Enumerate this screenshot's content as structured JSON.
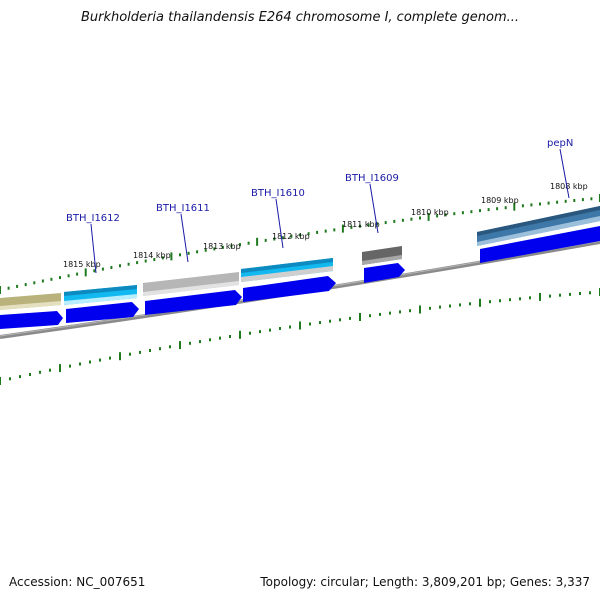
{
  "title": "Burkholderia thailandensis E264 chromosome I, complete genom...",
  "footer": {
    "accession": "Accession: NC_007651",
    "summary": "Topology: circular; Length: 3,809,201 bp; Genes: 3,337"
  },
  "kbp_labels": [
    "1815 kbp",
    "1814 kbp",
    "1813 kbp",
    "1812 kbp",
    "1811 kbp",
    "1810 kbp",
    "1809 kbp",
    "1808 kbp"
  ],
  "gene_labels": [
    "BTH_I1612",
    "BTH_I1611",
    "BTH_I1610",
    "BTH_I1609",
    "pepN"
  ],
  "colors": {
    "backbone": "#7a7a7a",
    "cds": "#0000ee",
    "tick": "#1f7a1f",
    "olive": "#b9b27c",
    "cyan": "#12b8f0",
    "silver": "#b6b6b6",
    "dark_gray": "#666666",
    "steel_blue": "#3d78a8",
    "label": "#1a1aa6"
  }
}
